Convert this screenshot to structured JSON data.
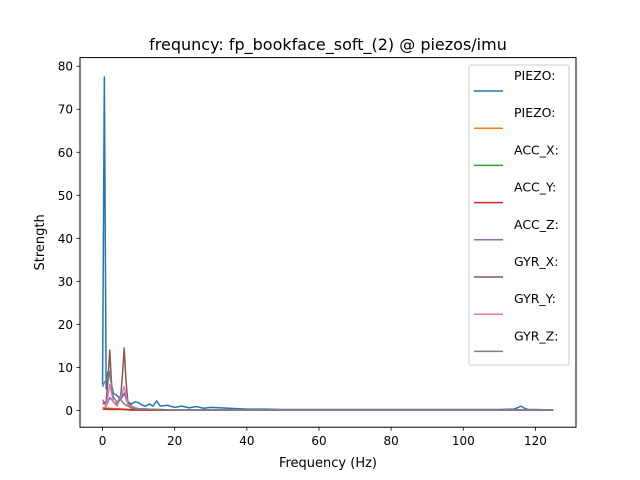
{
  "chart_data": {
    "type": "line",
    "title": "frequncy: fp_bookface_soft_(2) @ piezos/imu",
    "xlabel": "Frequency (Hz)",
    "ylabel": "Strength",
    "xlim": [
      -6.25,
      131.25
    ],
    "ylim": [
      -3.9,
      82.0
    ],
    "xticks": [
      0,
      20,
      40,
      60,
      80,
      100,
      120
    ],
    "yticks": [
      0,
      10,
      20,
      30,
      40,
      50,
      60,
      70,
      80
    ],
    "legend_position": "upper right",
    "series": [
      {
        "name": "PIEZO:",
        "color": "#1f77b4",
        "x": [
          0,
          0.5,
          1,
          1.5,
          2,
          3,
          4,
          5,
          6,
          7,
          8,
          9,
          10,
          11,
          12,
          13,
          14,
          15,
          16,
          18,
          20,
          22,
          24,
          26,
          28,
          30,
          35,
          40,
          45,
          50,
          55,
          60,
          70,
          80,
          90,
          100,
          110,
          114,
          115,
          116,
          117,
          118,
          120,
          125
        ],
        "y": [
          6,
          77.5,
          5,
          9,
          8,
          4,
          3.5,
          2.5,
          4,
          2,
          1.5,
          2,
          1.8,
          1.2,
          1.0,
          1.5,
          1.0,
          2.2,
          1.0,
          1.2,
          0.7,
          1.0,
          0.6,
          0.9,
          0.5,
          0.7,
          0.5,
          0.3,
          0.3,
          0.2,
          0.2,
          0.2,
          0.2,
          0.2,
          0.2,
          0.2,
          0.2,
          0.3,
          0.6,
          1.0,
          0.5,
          0.2,
          0.2,
          0.1
        ]
      },
      {
        "name": "PIEZO:",
        "color": "#ff7f0e",
        "x": [
          0,
          2,
          4,
          6,
          8,
          10,
          20,
          40,
          60,
          80,
          100,
          120,
          125
        ],
        "y": [
          0.6,
          0.5,
          0.4,
          0.3,
          0.2,
          0.1,
          0.1,
          0.1,
          0.1,
          0.1,
          0.1,
          0.1,
          0.1
        ]
      },
      {
        "name": "ACC_X:",
        "color": "#2ca02c",
        "x": [
          0,
          2,
          4,
          6,
          8,
          10,
          20,
          40,
          60,
          80,
          100,
          120,
          125
        ],
        "y": [
          0.3,
          0.2,
          0.2,
          0.2,
          0.1,
          0.1,
          0.05,
          0.05,
          0.05,
          0.05,
          0.05,
          0.05,
          0.05
        ]
      },
      {
        "name": "ACC_Y:",
        "color": "#d62728",
        "x": [
          0,
          2,
          4,
          6,
          8,
          10,
          20,
          40,
          60,
          80,
          100,
          120,
          125
        ],
        "y": [
          0.4,
          0.3,
          0.3,
          0.2,
          0.1,
          0.1,
          0.05,
          0.05,
          0.05,
          0.05,
          0.05,
          0.05,
          0.05
        ]
      },
      {
        "name": "ACC_Z:",
        "color": "#9467bd",
        "x": [
          0,
          1,
          2,
          3,
          4,
          5,
          6,
          7,
          8,
          10,
          15,
          20,
          40,
          60,
          80,
          100,
          120,
          125
        ],
        "y": [
          2.5,
          1.0,
          3.0,
          2.0,
          1.2,
          3.5,
          4.0,
          1.5,
          0.5,
          0.3,
          0.2,
          0.1,
          0.1,
          0.1,
          0.1,
          0.1,
          0.1,
          0.1
        ]
      },
      {
        "name": "GYR_X:",
        "color": "#8c564b",
        "x": [
          0,
          1,
          1.5,
          2,
          2.5,
          3,
          4,
          5,
          5.5,
          6,
          6.5,
          7,
          8,
          9,
          10,
          15,
          20,
          40,
          60,
          80,
          100,
          120,
          125
        ],
        "y": [
          1.5,
          2.0,
          7.0,
          14.0,
          6.0,
          2.0,
          1.5,
          3.0,
          8.0,
          14.5,
          7.0,
          2.0,
          1.0,
          0.6,
          0.4,
          0.2,
          0.1,
          0.1,
          0.1,
          0.1,
          0.1,
          0.1,
          0.1
        ]
      },
      {
        "name": "GYR_Y:",
        "color": "#e377c2",
        "x": [
          0,
          1,
          2,
          3,
          4,
          5,
          6,
          7,
          8,
          10,
          15,
          20,
          40,
          60,
          80,
          100,
          120,
          125
        ],
        "y": [
          0.5,
          1.0,
          6.0,
          2.0,
          1.0,
          3.0,
          5.5,
          1.5,
          0.8,
          0.4,
          0.2,
          0.1,
          0.1,
          0.1,
          0.1,
          0.1,
          0.1,
          0.1
        ]
      },
      {
        "name": "GYR_Z:",
        "color": "#7f7f7f",
        "x": [
          0,
          0.5,
          1,
          2,
          3,
          4,
          5,
          6,
          7,
          8,
          10,
          15,
          20,
          40,
          60,
          80,
          100,
          120,
          125
        ],
        "y": [
          5.5,
          6.5,
          7.0,
          9.0,
          3.0,
          2.0,
          2.5,
          1.5,
          1.0,
          0.6,
          0.4,
          0.2,
          0.1,
          0.1,
          0.1,
          0.1,
          0.1,
          0.1,
          0.1
        ]
      }
    ]
  }
}
